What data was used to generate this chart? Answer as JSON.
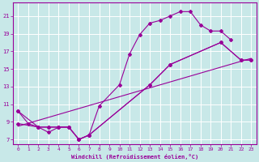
{
  "background_color": "#c8e8e8",
  "grid_color": "#b8d8d8",
  "line_color": "#990099",
  "xlabel": "Windchill (Refroidissement éolien,°C)",
  "ylabel_ticks": [
    7,
    9,
    11,
    13,
    15,
    17,
    19,
    21
  ],
  "xlabel_ticks": [
    0,
    1,
    2,
    3,
    4,
    5,
    6,
    7,
    8,
    9,
    10,
    11,
    12,
    13,
    14,
    15,
    16,
    17,
    18,
    19,
    20,
    21,
    22,
    23
  ],
  "xlim": [
    -0.5,
    23.5
  ],
  "ylim": [
    6.5,
    22.5
  ],
  "series": [
    {
      "x": [
        0,
        1,
        2,
        3,
        4,
        5,
        6,
        7,
        8,
        10,
        11,
        12,
        13,
        14,
        15,
        16,
        17,
        18,
        19,
        20,
        21
      ],
      "y": [
        10.2,
        8.8,
        8.4,
        8.4,
        8.4,
        8.4,
        7.0,
        7.5,
        10.8,
        13.2,
        16.7,
        18.9,
        20.2,
        20.5,
        21.0,
        21.5,
        21.5,
        20.0,
        19.3,
        19.3,
        18.3
      ]
    },
    {
      "x": [
        0,
        2,
        3,
        4,
        5,
        6,
        7,
        13,
        15,
        20,
        22,
        23
      ],
      "y": [
        10.2,
        8.4,
        8.4,
        8.4,
        8.4,
        7.0,
        7.5,
        13.2,
        15.5,
        18.0,
        16.0,
        16.0
      ]
    },
    {
      "x": [
        0,
        2,
        3,
        4,
        5,
        6,
        7,
        13,
        15,
        20,
        22,
        23
      ],
      "y": [
        8.8,
        8.4,
        7.8,
        8.4,
        8.4,
        7.0,
        7.5,
        13.2,
        15.5,
        18.0,
        16.0,
        16.0
      ]
    },
    {
      "x": [
        0,
        23
      ],
      "y": [
        8.5,
        16.2
      ]
    }
  ]
}
